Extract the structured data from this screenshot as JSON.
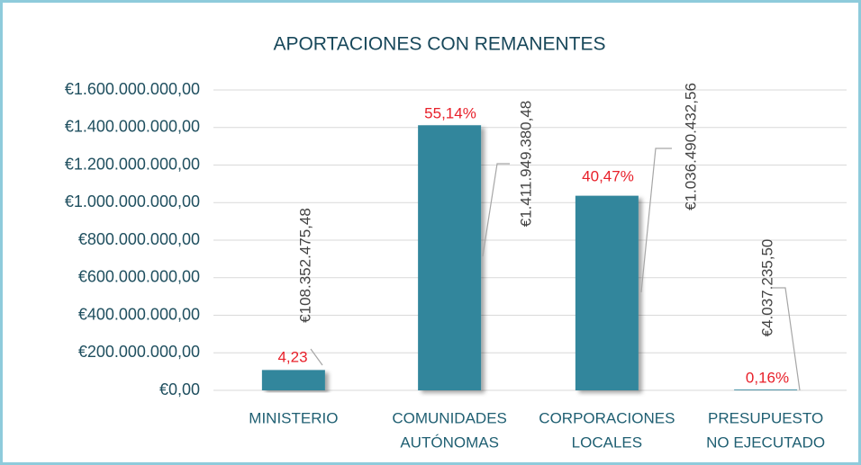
{
  "chart_data": {
    "type": "bar",
    "title": "APORTACIONES CON REMANENTES",
    "categories": [
      [
        "MINISTERIO"
      ],
      [
        "COMUNIDADES",
        "AUTÓNOMAS"
      ],
      [
        "CORPORACIONES",
        "LOCALES"
      ],
      [
        "PRESUPUESTO",
        "NO EJECUTADO"
      ]
    ],
    "values": [
      108352475.48,
      1411949380.48,
      1036490432.56,
      4037235.5
    ],
    "value_labels": [
      "€108.352.475,48",
      "€1.411.949.380,48",
      "€1.036.490.432,56",
      "€4.037.235,50"
    ],
    "percent_labels": [
      "4,23",
      "55,14%",
      "40,47%",
      "0,16%"
    ],
    "color": "#31869c",
    "ylim": [
      0,
      1600000000
    ],
    "yticks": [
      {
        "value": 0,
        "label": "€0,00"
      },
      {
        "value": 200000000,
        "label": "€200.000.000,00"
      },
      {
        "value": 400000000,
        "label": "€400.000.000,00"
      },
      {
        "value": 600000000,
        "label": "€600.000.000,00"
      },
      {
        "value": 800000000,
        "label": "€800.000.000,00"
      },
      {
        "value": 1000000000,
        "label": "€1.000.000.000,00"
      },
      {
        "value": 1200000000,
        "label": "€1.200.000.000,00"
      },
      {
        "value": 1400000000,
        "label": "€1.400.000.000,00"
      },
      {
        "value": 1600000000,
        "label": "€1.600.000.000,00"
      }
    ],
    "grid": true
  }
}
